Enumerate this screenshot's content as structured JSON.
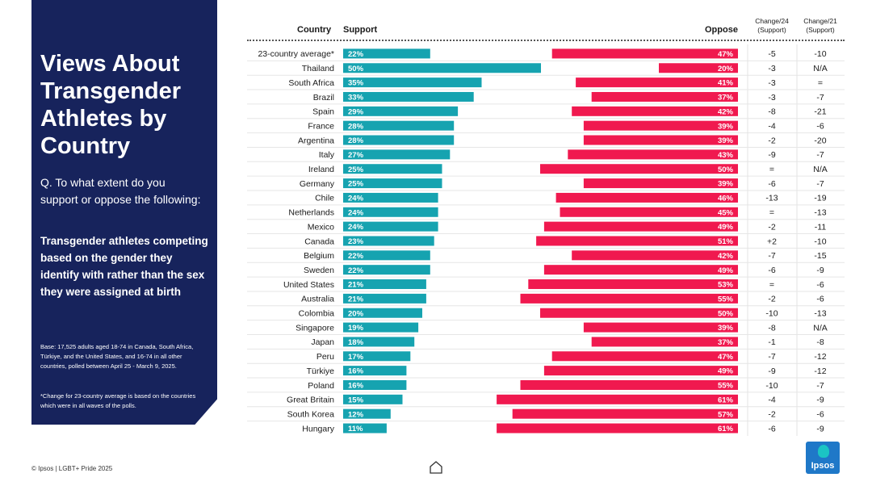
{
  "panel": {
    "title": "Views About Transgender Athletes by Country",
    "question": "Q. To what extent do you support or oppose the following:",
    "topic": "Transgender athletes competing based on the gender they identify with rather than the sex they were assigned at birth",
    "base": "Base: 17,525 adults aged 18-74 in Canada, South Africa, Türkiye, and the United States, and 16-74 in all other countries, polled between April 25 - March 9, 2025.",
    "note": "*Change for 23-country average is based on the countries which were in all waves of the polls."
  },
  "footer": {
    "source": "© Ipsos | LGBT+ Pride 2025",
    "logo_text": "Ipsos"
  },
  "colors": {
    "panel_bg": "#17235c",
    "support": "#16a3b0",
    "oppose": "#f0194f",
    "logo": "#1f78c8"
  },
  "chart_data": {
    "type": "bar",
    "orientation": "horizontal-diverging",
    "columns": {
      "country": "Country",
      "support": "Support",
      "oppose": "Oppose",
      "change24": "Change/24 (Support)",
      "change21": "Change/21 (Support)"
    },
    "value_suffix": "%",
    "rows": [
      {
        "country": "23-country average*",
        "support": 22,
        "oppose": 47,
        "change24": "-5",
        "change21": "-10"
      },
      {
        "country": "Thailand",
        "support": 50,
        "oppose": 20,
        "change24": "-3",
        "change21": "N/A"
      },
      {
        "country": "South Africa",
        "support": 35,
        "oppose": 41,
        "change24": "-3",
        "change21": "="
      },
      {
        "country": "Brazil",
        "support": 33,
        "oppose": 37,
        "change24": "-3",
        "change21": "-7"
      },
      {
        "country": "Spain",
        "support": 29,
        "oppose": 42,
        "change24": "-8",
        "change21": "-21"
      },
      {
        "country": "France",
        "support": 28,
        "oppose": 39,
        "change24": "-4",
        "change21": "-6"
      },
      {
        "country": "Argentina",
        "support": 28,
        "oppose": 39,
        "change24": "-2",
        "change21": "-20"
      },
      {
        "country": "Italy",
        "support": 27,
        "oppose": 43,
        "change24": "-9",
        "change21": "-7"
      },
      {
        "country": "Ireland",
        "support": 25,
        "oppose": 50,
        "change24": "=",
        "change21": "N/A"
      },
      {
        "country": "Germany",
        "support": 25,
        "oppose": 39,
        "change24": "-6",
        "change21": "-7"
      },
      {
        "country": "Chile",
        "support": 24,
        "oppose": 46,
        "change24": "-13",
        "change21": "-19"
      },
      {
        "country": "Netherlands",
        "support": 24,
        "oppose": 45,
        "change24": "=",
        "change21": "-13"
      },
      {
        "country": "Mexico",
        "support": 24,
        "oppose": 49,
        "change24": "-2",
        "change21": "-11"
      },
      {
        "country": "Canada",
        "support": 23,
        "oppose": 51,
        "change24": "+2",
        "change21": "-10"
      },
      {
        "country": "Belgium",
        "support": 22,
        "oppose": 42,
        "change24": "-7",
        "change21": "-15"
      },
      {
        "country": "Sweden",
        "support": 22,
        "oppose": 49,
        "change24": "-6",
        "change21": "-9"
      },
      {
        "country": "United States",
        "support": 21,
        "oppose": 53,
        "change24": "=",
        "change21": "-6"
      },
      {
        "country": "Australia",
        "support": 21,
        "oppose": 55,
        "change24": "-2",
        "change21": "-6"
      },
      {
        "country": "Colombia",
        "support": 20,
        "oppose": 50,
        "change24": "-10",
        "change21": "-13"
      },
      {
        "country": "Singapore",
        "support": 19,
        "oppose": 39,
        "change24": "-8",
        "change21": "N/A"
      },
      {
        "country": "Japan",
        "support": 18,
        "oppose": 37,
        "change24": "-1",
        "change21": "-8"
      },
      {
        "country": "Peru",
        "support": 17,
        "oppose": 47,
        "change24": "-7",
        "change21": "-12"
      },
      {
        "country": "Türkiye",
        "support": 16,
        "oppose": 49,
        "change24": "-9",
        "change21": "-12"
      },
      {
        "country": "Poland",
        "support": 16,
        "oppose": 55,
        "change24": "-10",
        "change21": "-7"
      },
      {
        "country": "Great Britain",
        "support": 15,
        "oppose": 61,
        "change24": "-4",
        "change21": "-9"
      },
      {
        "country": "South Korea",
        "support": 12,
        "oppose": 57,
        "change24": "-2",
        "change21": "-6"
      },
      {
        "country": "Hungary",
        "support": 11,
        "oppose": 61,
        "change24": "-6",
        "change21": "-9"
      }
    ]
  }
}
